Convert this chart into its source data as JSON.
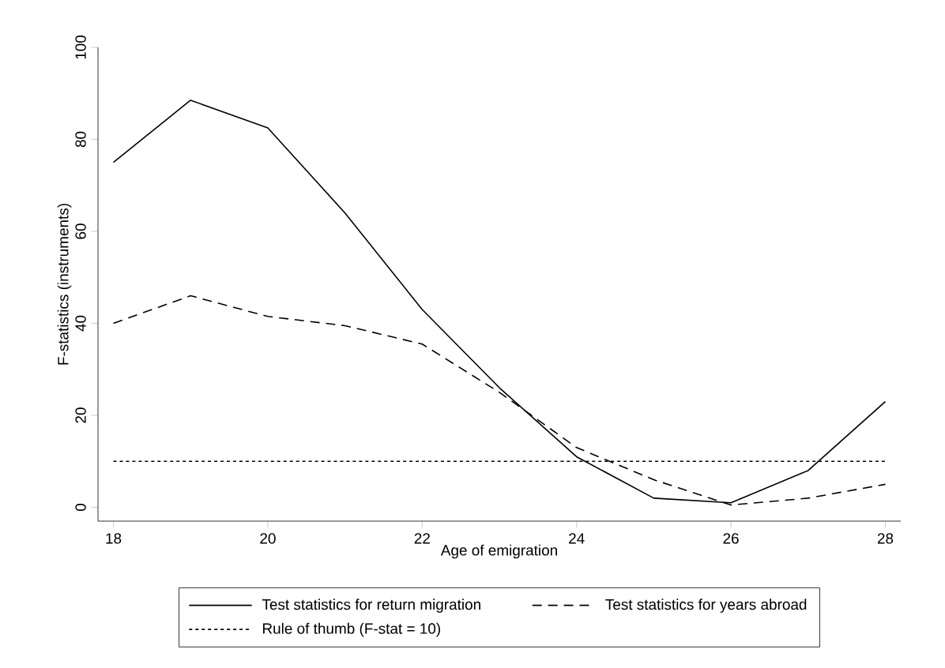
{
  "chart_data": {
    "type": "line",
    "xlabel": "Age of emigration",
    "ylabel": "F-statistics (instruments)",
    "x": [
      18,
      19,
      20,
      21,
      22,
      23,
      24,
      25,
      26,
      27,
      28
    ],
    "series": [
      {
        "name": "Test statistics for return migration",
        "color": "#000000",
        "line_style": "solid",
        "values": [
          75,
          88.5,
          82.5,
          64,
          43,
          26,
          11,
          2,
          1,
          8,
          23
        ]
      },
      {
        "name": "Test statistics for years abroad",
        "color": "#000000",
        "line_style": "dashed",
        "values": [
          40,
          46,
          41.5,
          39.5,
          35.5,
          25,
          13,
          6,
          0.5,
          2,
          5
        ]
      }
    ],
    "ref_lines": [
      {
        "axis": "y",
        "value": 10,
        "label": "Rule of thumb (F-stat = 10)",
        "color": "#000000",
        "line_style": "dotted"
      }
    ],
    "xlim": [
      17.8,
      28.2
    ],
    "ylim": [
      -3,
      100
    ],
    "xticks": [
      18,
      20,
      22,
      24,
      26,
      28
    ],
    "yticks": [
      0,
      20,
      40,
      60,
      80,
      100
    ],
    "grid": false,
    "legend": "bottom",
    "marker": "none"
  }
}
